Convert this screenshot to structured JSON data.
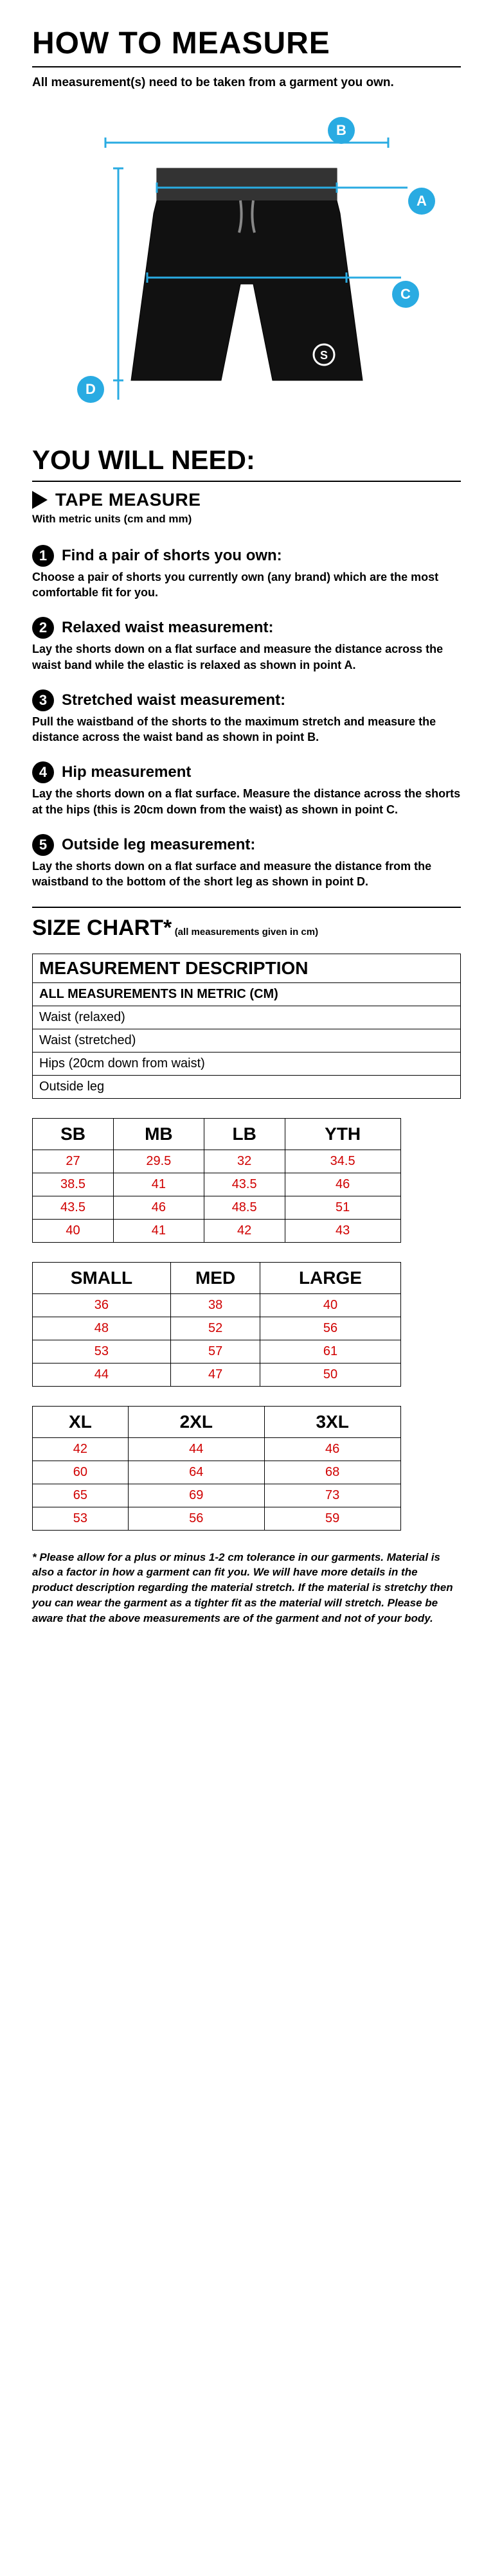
{
  "colors": {
    "accent": "#29abe2",
    "value_text": "#d00000",
    "text": "#000000",
    "background": "#ffffff"
  },
  "header": {
    "title": "HOW TO MEASURE",
    "subtitle": "All measurement(s) need to be taken from a garment you own."
  },
  "markers": {
    "a": "A",
    "b": "B",
    "c": "C",
    "d": "D"
  },
  "need": {
    "heading": "YOU WILL NEED:",
    "tape_title": "TAPE MEASURE",
    "tape_sub": "With metric units (cm and mm)"
  },
  "steps": [
    {
      "n": "1",
      "title": "Find a pair of shorts you own:",
      "body": "Choose a pair of shorts you currently own (any brand) which are the most comfortable fit for you."
    },
    {
      "n": "2",
      "title": "Relaxed waist measurement:",
      "body": "Lay the shorts down on a flat surface and measure the distance across the waist band while the elastic is relaxed as shown in point A."
    },
    {
      "n": "3",
      "title": "Stretched waist measurement:",
      "body": "Pull the waistband of the shorts to the maximum stretch and measure the distance across the waist band as shown in point B."
    },
    {
      "n": "4",
      "title": "Hip measurement",
      "body": "Lay the shorts down on a flat surface. Measure the distance across the shorts at the hips (this is 20cm down from the waist) as shown in point C."
    },
    {
      "n": "5",
      "title": "Outside leg measurement:",
      "body": "Lay the shorts down on a flat surface and measure the distance from the waistband to the bottom of the short leg as shown in point D."
    }
  ],
  "chart": {
    "title": "SIZE CHART*",
    "note": " (all measurements given in cm)",
    "desc_header": "MEASUREMENT DESCRIPTION",
    "desc_subhead": "ALL MEASUREMENTS IN METRIC (CM)",
    "rows": [
      "Waist (relaxed)",
      "Waist (stretched)",
      "Hips (20cm down from waist)",
      "Outside leg"
    ],
    "tables": [
      {
        "headers": [
          "SB",
          "MB",
          "LB",
          "YTH"
        ],
        "values": [
          [
            "27",
            "29.5",
            "32",
            "34.5"
          ],
          [
            "38.5",
            "41",
            "43.5",
            "46"
          ],
          [
            "43.5",
            "46",
            "48.5",
            "51"
          ],
          [
            "40",
            "41",
            "42",
            "43"
          ]
        ]
      },
      {
        "headers": [
          "SMALL",
          "MED",
          "LARGE"
        ],
        "values": [
          [
            "36",
            "38",
            "40"
          ],
          [
            "48",
            "52",
            "56"
          ],
          [
            "53",
            "57",
            "61"
          ],
          [
            "44",
            "47",
            "50"
          ]
        ]
      },
      {
        "headers": [
          "XL",
          "2XL",
          "3XL"
        ],
        "values": [
          [
            "42",
            "44",
            "46"
          ],
          [
            "60",
            "64",
            "68"
          ],
          [
            "65",
            "69",
            "73"
          ],
          [
            "53",
            "56",
            "59"
          ]
        ]
      }
    ]
  },
  "footnote": "* Please allow for a plus or minus 1-2 cm tolerance in our garments. Material is also a factor in how a garment can fit you. We will have more details in the product description regarding the material stretch. If the material is stretchy then you can wear the garment as a tighter fit as the material will stretch. Please be aware that the above measurements are of the garment and not of your body."
}
